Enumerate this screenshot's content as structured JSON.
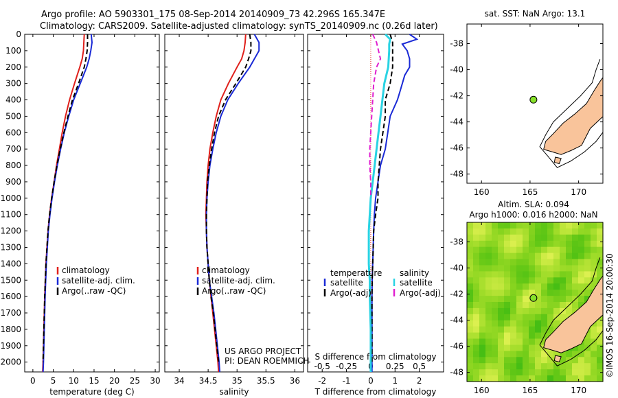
{
  "header": {
    "line1": "Argo profile: AO 5903301_175 08-Sep-2014 20140909_73 42.296S 165.347E",
    "line2": "Climatology: CARS2009. Satellite-adjusted climatology: synTS_20140909.nc (0.26d later)"
  },
  "colors": {
    "clim": "#e0201b",
    "sat": "#1a2ad6",
    "argo": "#000000",
    "sal_sat": "#29d3e3",
    "sal_argo": "#e020d0",
    "land": "#f9c49b",
    "dot": "#86e02a"
  },
  "depth_axis": {
    "ticks": [
      0,
      100,
      200,
      300,
      400,
      500,
      600,
      700,
      800,
      900,
      1000,
      1100,
      1200,
      1300,
      1400,
      1500,
      1600,
      1700,
      1800,
      1900,
      2000
    ],
    "ylim": [
      0,
      2060
    ]
  },
  "chart_data": [
    {
      "type": "line",
      "xlabel": "temperature (deg C)",
      "xlim": [
        -2,
        31
      ],
      "xticks": [
        0,
        5,
        10,
        15,
        20,
        25,
        30
      ],
      "legend": [
        "climatology",
        "satellite-adj. clim.",
        "Argo(..raw -QC)"
      ],
      "series": [
        {
          "key": "clim",
          "depth": [
            0,
            50,
            100,
            150,
            200,
            300,
            400,
            500,
            600,
            700,
            800,
            900,
            1000,
            1100,
            1200,
            1400,
            1600,
            1800,
            2000,
            2060
          ],
          "values": [
            12.6,
            12.5,
            12.4,
            12.1,
            11.5,
            10.2,
            9.0,
            8.0,
            7.2,
            6.5,
            5.8,
            5.2,
            4.6,
            4.1,
            3.7,
            3.2,
            2.9,
            2.7,
            2.5,
            2.4
          ]
        },
        {
          "key": "sat",
          "depth": [
            0,
            50,
            100,
            150,
            200,
            300,
            400,
            500,
            600,
            700,
            800,
            900,
            1000,
            1100,
            1200,
            1400,
            1600,
            1800,
            2000,
            2060
          ],
          "values": [
            14.3,
            14.5,
            14.2,
            13.8,
            13.2,
            11.6,
            10.0,
            8.8,
            7.7,
            6.8,
            6.0,
            5.3,
            4.7,
            4.2,
            3.8,
            3.3,
            3.0,
            2.8,
            2.6,
            2.5
          ]
        },
        {
          "key": "argo",
          "dash": true,
          "depth": [
            0,
            50,
            100,
            150,
            200,
            300,
            400,
            500,
            600,
            700,
            800,
            900,
            1000,
            1100,
            1200,
            1400,
            1600,
            1800,
            2000
          ],
          "values": [
            13.4,
            13.4,
            13.3,
            13.0,
            12.6,
            11.2,
            9.7,
            8.6,
            7.6,
            6.7,
            5.9,
            5.2,
            4.6,
            4.1,
            3.7,
            3.2,
            2.9,
            2.7,
            2.5
          ]
        }
      ]
    },
    {
      "type": "line",
      "xlabel": "salinity",
      "xlim": [
        33.75,
        36.15
      ],
      "xticks": [
        34,
        34.5,
        35,
        35.5,
        36
      ],
      "legend": [
        "climatology",
        "satellite-adj. clim.",
        "Argo(..raw -QC)"
      ],
      "annotation": [
        "US ARGO PROJECT",
        "PI: DEAN ROEMMICH"
      ],
      "series": [
        {
          "key": "clim",
          "depth": [
            0,
            50,
            100,
            150,
            200,
            300,
            400,
            500,
            600,
            700,
            800,
            900,
            1000,
            1100,
            1200,
            1300,
            1400,
            1500,
            1600,
            1700,
            1800,
            1900,
            2000,
            2060
          ],
          "values": [
            35.15,
            35.14,
            35.12,
            35.08,
            35.0,
            34.85,
            34.72,
            34.64,
            34.58,
            34.53,
            34.5,
            34.48,
            34.47,
            34.46,
            34.47,
            34.48,
            34.5,
            34.52,
            34.55,
            34.58,
            34.61,
            34.64,
            34.67,
            34.68
          ]
        },
        {
          "key": "sat",
          "depth": [
            0,
            50,
            100,
            150,
            200,
            300,
            400,
            500,
            600,
            700,
            800,
            900,
            1000,
            1100,
            1200,
            1300,
            1400,
            1500,
            1600,
            1700,
            1800,
            1900,
            2000,
            2060
          ],
          "values": [
            35.3,
            35.38,
            35.38,
            35.3,
            35.22,
            35.02,
            34.84,
            34.72,
            34.64,
            34.58,
            34.53,
            34.5,
            34.48,
            34.47,
            34.47,
            34.48,
            34.5,
            34.52,
            34.56,
            34.6,
            34.63,
            34.66,
            34.69,
            34.7
          ]
        },
        {
          "key": "argo",
          "dash": true,
          "depth": [
            0,
            50,
            100,
            150,
            200,
            300,
            400,
            500,
            600,
            700,
            800,
            900,
            1000,
            1100,
            1200,
            1300,
            1400,
            1500,
            1600,
            1700,
            1800,
            1900,
            2000
          ],
          "values": [
            35.22,
            35.24,
            35.24,
            35.2,
            35.15,
            34.98,
            34.8,
            34.68,
            34.61,
            34.56,
            34.52,
            34.49,
            34.48,
            34.47,
            34.47,
            34.48,
            34.5,
            34.52,
            34.55,
            34.59,
            34.62,
            34.65,
            34.68
          ]
        }
      ]
    },
    {
      "type": "line",
      "xlabel": "T difference from climatology",
      "xlabel2": "S difference from climatology",
      "xlim": [
        -2.6,
        3.0
      ],
      "xticks": [
        -2,
        -1,
        0,
        1,
        2
      ],
      "xticks2": [
        -0.5,
        -0.25,
        0,
        0.25,
        0.5
      ],
      "xticks2_labels": [
        "-0.5",
        "-0.25",
        "0",
        "0.25",
        "0.5"
      ],
      "xlim2": [
        -0.65,
        0.75
      ],
      "legend_temperature": [
        "temperature",
        "satellite",
        "Argo(-adj)"
      ],
      "legend_salinity": [
        "salinity",
        "satellite",
        "Argo(-adj)"
      ],
      "series": [
        {
          "key": "sat",
          "axis": "T",
          "depth": [
            0,
            30,
            60,
            100,
            150,
            200,
            250,
            300,
            350,
            400,
            500,
            600,
            700,
            800,
            900,
            1000,
            1100,
            1200,
            1300,
            1400,
            1500,
            1600,
            1800,
            2000,
            2060
          ],
          "values": [
            1.6,
            1.9,
            1.3,
            1.5,
            1.6,
            1.6,
            1.4,
            1.3,
            1.2,
            1.1,
            0.8,
            0.7,
            0.6,
            0.4,
            0.3,
            0.2,
            0.15,
            0.12,
            0.1,
            0.08,
            0.06,
            0.05,
            0.05,
            0.05,
            0.05
          ]
        },
        {
          "key": "argo",
          "axis": "T",
          "dash": true,
          "depth": [
            0,
            50,
            100,
            150,
            200,
            300,
            400,
            500,
            600,
            700,
            800,
            900,
            1000,
            1100,
            1200,
            1300,
            1400,
            1500,
            1600,
            1800,
            2000
          ],
          "values": [
            0.8,
            0.9,
            0.9,
            0.9,
            0.9,
            0.8,
            0.6,
            0.6,
            0.5,
            0.4,
            0.35,
            0.3,
            0.3,
            0.2,
            0.12,
            0.1,
            0.08,
            0.06,
            0.05,
            0.05,
            0.05
          ]
        },
        {
          "key": "sal_sat",
          "axis": "S",
          "depth": [
            0,
            30,
            60,
            100,
            200,
            300,
            400,
            500,
            600,
            700,
            800,
            900,
            1000,
            1100,
            1200,
            1300,
            1400,
            1500,
            1600,
            1800,
            2000,
            2060
          ],
          "values": [
            0.15,
            0.2,
            0.19,
            0.19,
            0.18,
            0.14,
            0.12,
            0.1,
            0.08,
            0.06,
            0.04,
            0.02,
            0.0,
            -0.01,
            -0.02,
            -0.02,
            -0.02,
            -0.01,
            -0.01,
            0.0,
            0.0,
            0.0
          ]
        },
        {
          "key": "sal_argo",
          "axis": "S",
          "dash": true,
          "depth": [
            0,
            50,
            100,
            150,
            200,
            300,
            400,
            500,
            600,
            700,
            800,
            900,
            1000
          ],
          "values": [
            0.02,
            0.06,
            0.08,
            0.1,
            0.06,
            0.03,
            0.02,
            0.01,
            0.0,
            -0.01,
            -0.01,
            0.0,
            0.0
          ]
        }
      ]
    }
  ],
  "map_top": {
    "title": "sat. SST: NaN Argo: 13.1",
    "xticks": [
      160,
      165,
      170
    ],
    "yticks": [
      -38,
      -40,
      -42,
      -44,
      -46,
      -48
    ],
    "xlim": [
      158.5,
      172.5
    ],
    "ylim": [
      -48.7,
      -36.5
    ],
    "float": {
      "lon": 165.35,
      "lat": -42.3
    }
  },
  "map_bottom": {
    "title1": "Altim. SLA: 0.094",
    "title2": "Argo h1000: 0.016 h2000: NaN",
    "xticks": [
      160,
      165,
      170
    ],
    "yticks": [
      -38,
      -40,
      -42,
      -44,
      -46,
      -48
    ],
    "xlim": [
      158.5,
      172.5
    ],
    "ylim": [
      -48.7,
      -36.5
    ],
    "float": {
      "lon": 165.35,
      "lat": -42.3
    },
    "side_label": "©IMOS 16-Sep-2014 20:00:30"
  }
}
